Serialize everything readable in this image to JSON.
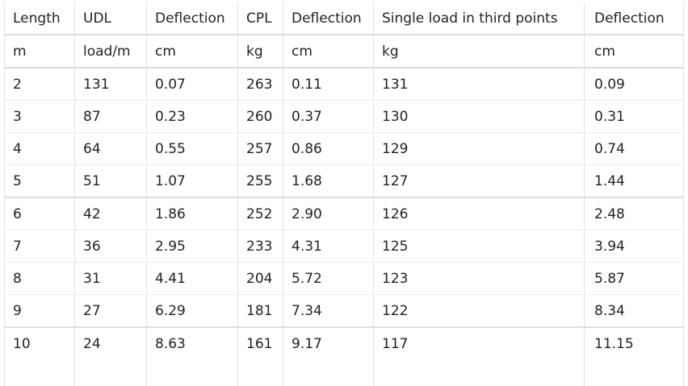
{
  "headers": [
    "Length",
    "UDL",
    "Deflection",
    "CPL",
    "Deflection",
    "Single load in third points",
    "Deflection"
  ],
  "units": [
    "m",
    "load/m",
    "cm",
    "kg",
    "cm",
    "kg",
    "cm"
  ],
  "rows": [
    [
      "2",
      "131",
      "0.07",
      "263",
      "0.11",
      "131",
      "0.09"
    ],
    [
      "3",
      "87",
      "0.23",
      "260",
      "0.37",
      "130",
      "0.31"
    ],
    [
      "4",
      "64",
      "0.55",
      "257",
      "0.86",
      "129",
      "0.74"
    ],
    [
      "5",
      "51",
      "1.07",
      "255",
      "1.68",
      "127",
      "1.44"
    ],
    [
      "6",
      "42",
      "1.86",
      "252",
      "2.90",
      "126",
      "2.48"
    ],
    [
      "7",
      "36",
      "2.95",
      "233",
      "4.31",
      "125",
      "3.94"
    ],
    [
      "8",
      "31",
      "4.41",
      "204",
      "5.72",
      "123",
      "5.87"
    ],
    [
      "9",
      "27",
      "6.29",
      "181",
      "7.34",
      "122",
      "8.34"
    ],
    [
      "10",
      "24",
      "8.63",
      "161",
      "9.17",
      "117",
      "11.15"
    ]
  ]
}
